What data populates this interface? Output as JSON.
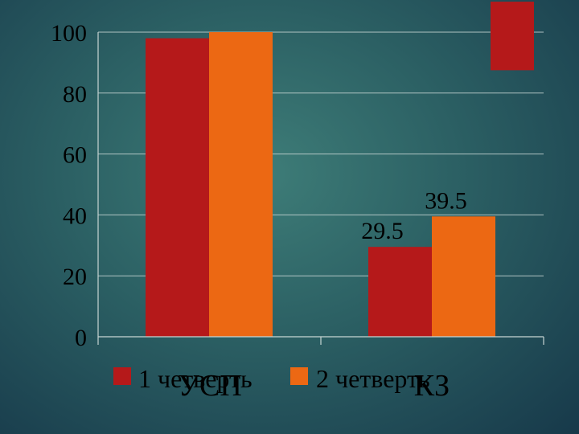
{
  "chart_data": {
    "type": "bar",
    "categories": [
      "УСП",
      "КЗ"
    ],
    "series": [
      {
        "name": "1 четверть",
        "color": "#b5191a",
        "values": [
          98,
          29.5
        ]
      },
      {
        "name": "2 четверть",
        "color": "#ec6813",
        "values": [
          100,
          39.5
        ]
      }
    ],
    "data_labels": [
      {
        "series": 0,
        "category": 1,
        "text": "29.5"
      },
      {
        "series": 1,
        "category": 1,
        "text": "39.5"
      }
    ],
    "extra_bar": {
      "series": 0,
      "range": [
        87.5,
        110
      ]
    },
    "yticks": [
      "0",
      "20",
      "40",
      "60",
      "80",
      "100"
    ],
    "ylim": [
      0,
      100
    ],
    "grid": true,
    "legend_position": "bottom",
    "title": "",
    "xlabel": "",
    "ylabel": ""
  }
}
